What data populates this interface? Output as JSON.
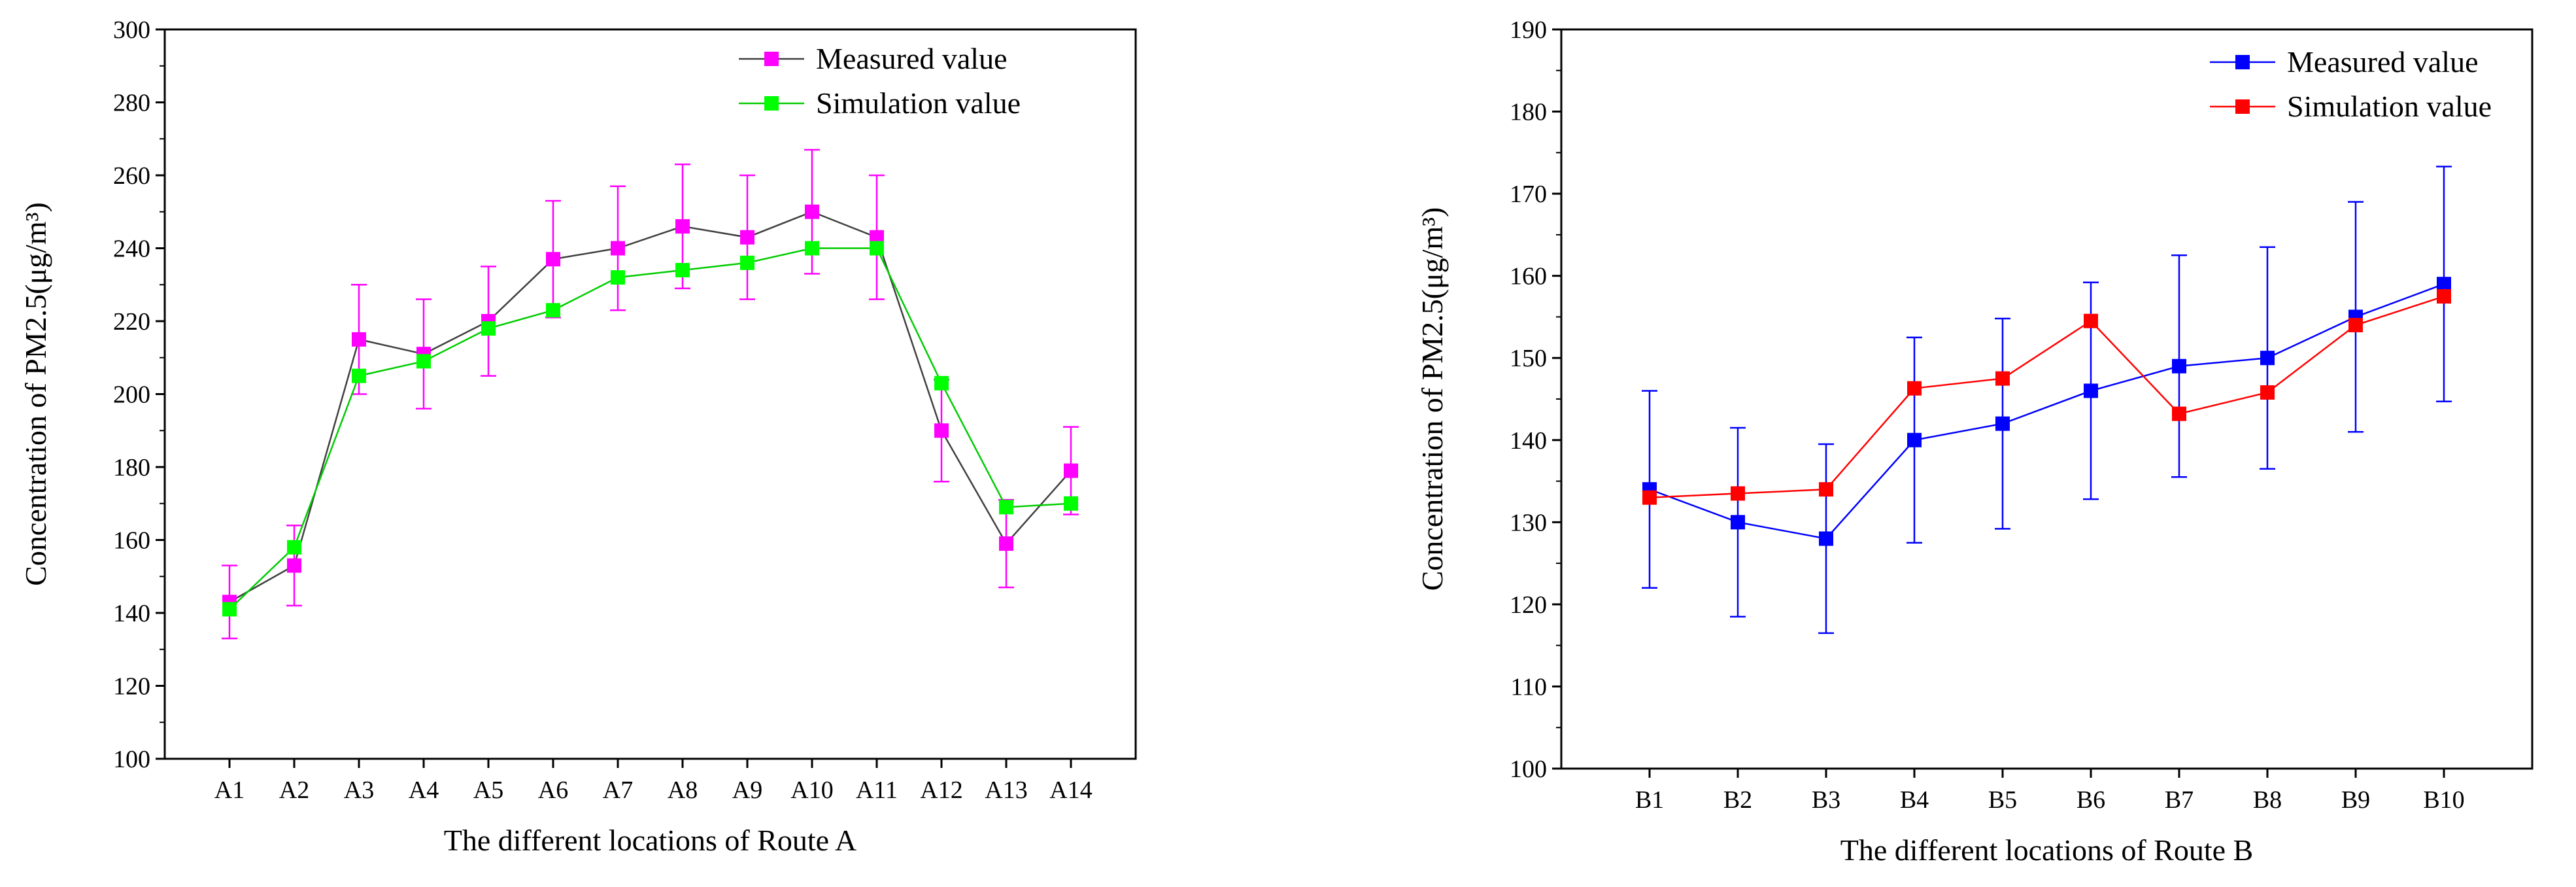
{
  "chart_data": [
    {
      "type": "line",
      "title": "",
      "xlabel": "The different locations of Route A",
      "ylabel": "Concentration of  PM2.5(μg/m³)",
      "ylim": [
        100,
        300
      ],
      "yticks": [
        100,
        120,
        140,
        160,
        180,
        200,
        220,
        240,
        260,
        280,
        300
      ],
      "categories": [
        "A1",
        "A2",
        "A3",
        "A4",
        "A5",
        "A6",
        "A7",
        "A8",
        "A9",
        "A10",
        "A11",
        "A12",
        "A13",
        "A14"
      ],
      "legend_position": "top-right",
      "series": [
        {
          "name": "Measured value",
          "line_color": "#404040",
          "marker_color": "#ff00ff",
          "values": [
            143,
            153,
            215,
            211,
            220,
            237,
            240,
            246,
            243,
            250,
            243,
            190,
            159,
            179
          ],
          "error": [
            10,
            11,
            15,
            15,
            15,
            16,
            17,
            17,
            17,
            17,
            17,
            14,
            12,
            12
          ],
          "error_color": "#ff00ff"
        },
        {
          "name": "Simulation value",
          "line_color": "#00cc00",
          "marker_color": "#00ff00",
          "values": [
            141,
            158,
            205,
            209,
            218,
            223,
            232,
            234,
            236,
            240,
            240,
            203,
            169,
            170
          ]
        }
      ]
    },
    {
      "type": "line",
      "title": "",
      "xlabel": "The different locations of Route B",
      "ylabel": "Concentration of  PM2.5(μg/m³)",
      "ylim": [
        100,
        190
      ],
      "yticks": [
        100,
        110,
        120,
        130,
        140,
        150,
        160,
        170,
        180,
        190
      ],
      "categories": [
        "B1",
        "B2",
        "B3",
        "B4",
        "B5",
        "B6",
        "B7",
        "B8",
        "B9",
        "B10"
      ],
      "legend_position": "top-right",
      "series": [
        {
          "name": "Measured value",
          "line_color": "#0000ff",
          "marker_color": "#0000ff",
          "values": [
            134,
            130,
            128,
            140,
            142,
            146,
            149,
            150,
            155,
            159
          ],
          "error": [
            12,
            11.5,
            11.5,
            12.5,
            12.8,
            13.2,
            13.5,
            13.5,
            14,
            14.3
          ],
          "error_color": "#0000ff"
        },
        {
          "name": "Simulation value",
          "line_color": "#ff0000",
          "marker_color": "#ff0000",
          "values": [
            133,
            133.5,
            134,
            146.3,
            147.5,
            154.5,
            143.2,
            145.8,
            154,
            157.5
          ]
        }
      ]
    }
  ]
}
